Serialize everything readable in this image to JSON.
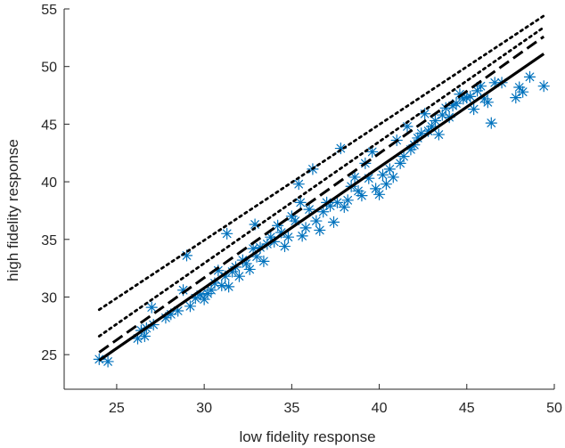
{
  "chart_data": {
    "type": "scatter",
    "xlabel": "low fidelity response",
    "ylabel": "high fidelity response",
    "xlim": [
      22,
      50
    ],
    "ylim": [
      22,
      55
    ],
    "xticks": [
      25,
      30,
      35,
      40,
      45,
      50
    ],
    "yticks": [
      25,
      30,
      35,
      40,
      45,
      50,
      55
    ],
    "grid": false,
    "legend": "none",
    "colors": {
      "points": "#0072bd",
      "lines": "#000000",
      "axes": "#262626"
    },
    "series": [
      {
        "kind": "points",
        "marker": "asterisk",
        "points": [
          [
            24.0,
            24.6
          ],
          [
            24.5,
            24.4
          ],
          [
            26.2,
            26.4
          ],
          [
            26.4,
            27.1
          ],
          [
            26.6,
            26.6
          ],
          [
            26.7,
            27.3
          ],
          [
            27.0,
            29.1
          ],
          [
            27.1,
            27.6
          ],
          [
            27.8,
            28.2
          ],
          [
            28.1,
            28.5
          ],
          [
            28.5,
            28.8
          ],
          [
            28.8,
            30.6
          ],
          [
            29.0,
            33.6
          ],
          [
            29.2,
            29.2
          ],
          [
            29.5,
            29.9
          ],
          [
            29.8,
            30.2
          ],
          [
            30.0,
            29.8
          ],
          [
            30.2,
            30.3
          ],
          [
            30.4,
            30.6
          ],
          [
            30.6,
            31.2
          ],
          [
            30.8,
            32.3
          ],
          [
            31.0,
            31.0
          ],
          [
            31.2,
            31.8
          ],
          [
            31.3,
            35.5
          ],
          [
            31.4,
            30.9
          ],
          [
            31.6,
            32.2
          ],
          [
            31.8,
            32.6
          ],
          [
            32.0,
            31.8
          ],
          [
            32.2,
            33.2
          ],
          [
            32.4,
            32.9
          ],
          [
            32.6,
            32.4
          ],
          [
            32.8,
            34.2
          ],
          [
            32.9,
            36.3
          ],
          [
            33.0,
            33.5
          ],
          [
            33.2,
            34.3
          ],
          [
            33.4,
            33.1
          ],
          [
            33.6,
            34.6
          ],
          [
            33.8,
            35.2
          ],
          [
            34.0,
            34.8
          ],
          [
            34.2,
            36.2
          ],
          [
            34.4,
            35.6
          ],
          [
            34.6,
            34.4
          ],
          [
            34.8,
            35.2
          ],
          [
            35.0,
            37.0
          ],
          [
            35.2,
            36.6
          ],
          [
            35.4,
            39.8
          ],
          [
            35.5,
            38.2
          ],
          [
            35.6,
            35.3
          ],
          [
            35.8,
            36.0
          ],
          [
            36.0,
            37.6
          ],
          [
            36.2,
            41.1
          ],
          [
            36.4,
            36.6
          ],
          [
            36.6,
            35.8
          ],
          [
            36.8,
            37.4
          ],
          [
            37.0,
            38.2
          ],
          [
            37.2,
            37.9
          ],
          [
            37.4,
            36.5
          ],
          [
            37.6,
            38.2
          ],
          [
            37.8,
            42.9
          ],
          [
            38.0,
            37.8
          ],
          [
            38.2,
            38.4
          ],
          [
            38.4,
            39.6
          ],
          [
            38.6,
            40.4
          ],
          [
            38.8,
            39.2
          ],
          [
            39.0,
            38.8
          ],
          [
            39.2,
            41.6
          ],
          [
            39.4,
            40.3
          ],
          [
            39.6,
            42.6
          ],
          [
            39.8,
            39.4
          ],
          [
            40.0,
            38.9
          ],
          [
            40.2,
            40.6
          ],
          [
            40.4,
            39.8
          ],
          [
            40.6,
            41.1
          ],
          [
            40.8,
            40.4
          ],
          [
            41.0,
            43.6
          ],
          [
            41.2,
            41.6
          ],
          [
            41.4,
            42.2
          ],
          [
            41.6,
            44.8
          ],
          [
            41.8,
            42.8
          ],
          [
            42.0,
            43.2
          ],
          [
            42.2,
            43.8
          ],
          [
            42.4,
            44.2
          ],
          [
            42.6,
            45.9
          ],
          [
            42.8,
            44.4
          ],
          [
            43.0,
            44.8
          ],
          [
            43.2,
            45.3
          ],
          [
            43.4,
            44.1
          ],
          [
            43.6,
            45.8
          ],
          [
            43.8,
            46.4
          ],
          [
            44.0,
            45.6
          ],
          [
            44.2,
            46.6
          ],
          [
            44.4,
            46.8
          ],
          [
            44.6,
            47.6
          ],
          [
            44.8,
            47.2
          ],
          [
            45.0,
            47.3
          ],
          [
            45.2,
            47.4
          ],
          [
            45.4,
            46.3
          ],
          [
            45.6,
            47.9
          ],
          [
            45.8,
            48.3
          ],
          [
            46.0,
            47.2
          ],
          [
            46.2,
            46.9
          ],
          [
            46.4,
            45.1
          ],
          [
            46.6,
            48.6
          ],
          [
            47.0,
            48.6
          ],
          [
            47.8,
            47.3
          ],
          [
            48.0,
            48.2
          ],
          [
            48.2,
            47.8
          ],
          [
            48.6,
            49.1
          ],
          [
            49.4,
            48.3
          ]
        ]
      },
      {
        "kind": "line",
        "dash": "solid",
        "width": 3.2,
        "x": [
          24.0,
          49.4
        ],
        "y": [
          24.5,
          51.1
        ]
      },
      {
        "kind": "line",
        "dash": "dashed",
        "width": 3.0,
        "x": [
          24.0,
          49.4
        ],
        "y": [
          25.2,
          52.6
        ]
      },
      {
        "kind": "line",
        "dash": "dotted",
        "width": 2.8,
        "x": [
          24.0,
          49.4
        ],
        "y": [
          26.6,
          53.4
        ]
      },
      {
        "kind": "line",
        "dash": "dotted",
        "width": 2.8,
        "x": [
          24.0,
          49.4
        ],
        "y": [
          28.9,
          54.4
        ]
      }
    ]
  }
}
